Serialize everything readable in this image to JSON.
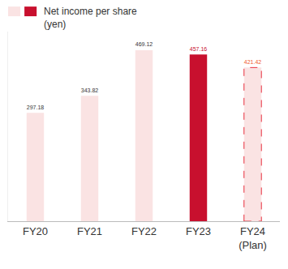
{
  "chart_data": {
    "type": "bar",
    "categories": [
      "FY20",
      "FY21",
      "FY22",
      "FY23",
      "FY24 (Plan)"
    ],
    "series": [
      {
        "name": "Net income per share (yen)",
        "values": [
          297.18,
          343.82,
          469.12,
          457.16,
          421.42
        ],
        "colors": [
          "#fae3e3",
          "#fae3e3",
          "#fae3e3",
          "#c8102e",
          "#fae3e3"
        ]
      }
    ],
    "ylim": [
      0,
      520
    ],
    "yticks": [],
    "tick_labels": "x",
    "data_labels": true,
    "grid": false,
    "legend": "top-left"
  }
}
